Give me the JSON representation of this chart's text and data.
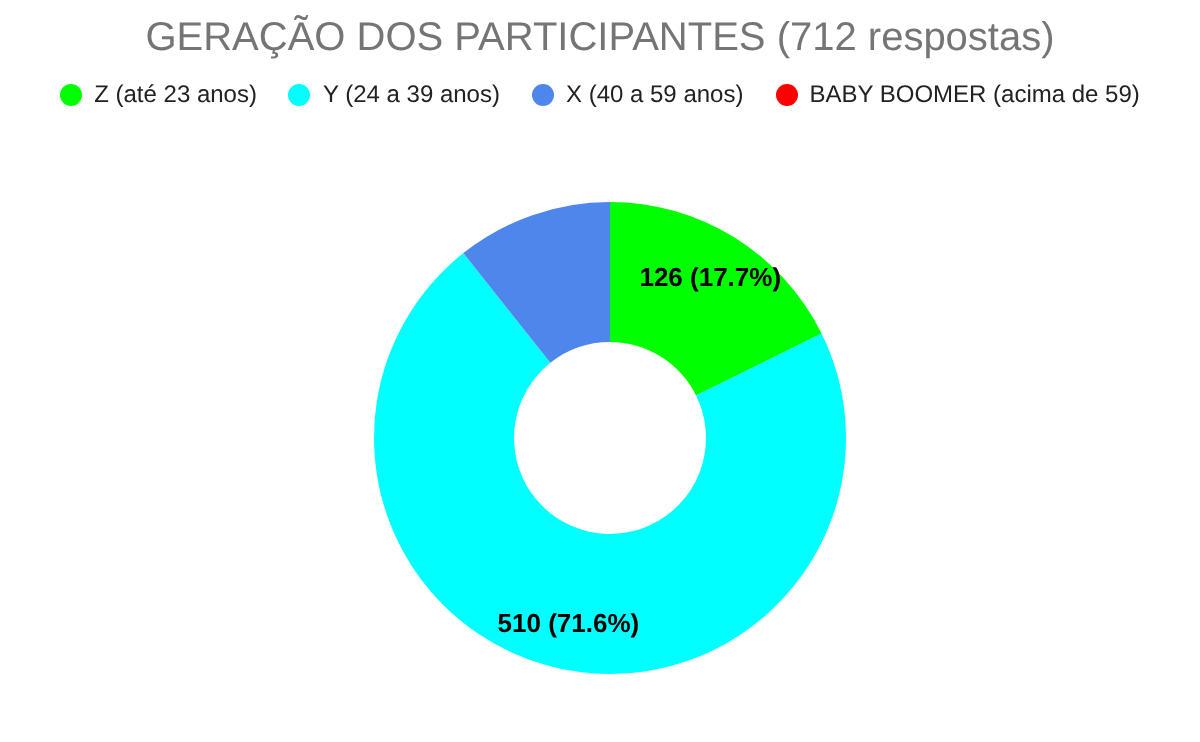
{
  "chart_data": {
    "type": "donut",
    "title": "GERAÇÃO DOS PARTICIPANTES (712 respostas)",
    "categories": [
      "Z (até 23 anos)",
      "Y (24 a 39 anos)",
      "X (40 a 59 anos)",
      "BABY BOOMER (acima de 59)"
    ],
    "values": [
      126,
      510,
      76,
      0
    ],
    "colors": [
      "#00ff00",
      "#00ffff",
      "#4f86ec",
      "#ff0000"
    ],
    "value_labels": [
      "126 (17.7%)",
      "510 (71.6%)",
      null,
      null
    ],
    "legend": "top"
  }
}
